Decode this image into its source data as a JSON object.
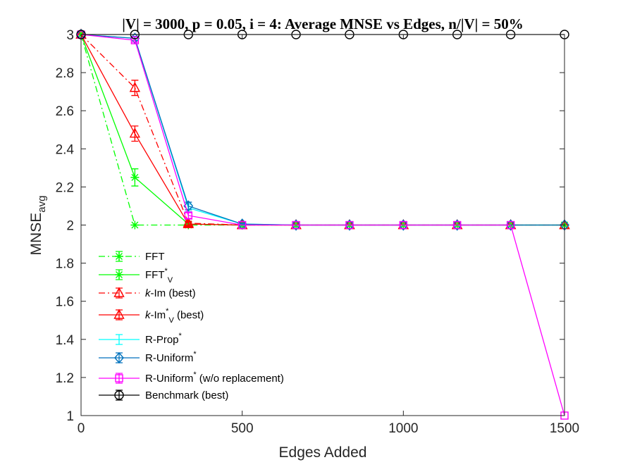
{
  "chart_data": {
    "type": "line",
    "title": "|V| = 3000, p = 0.05, i = 4: Average MNSE vs Edges, n/|V| = 50%",
    "xlabel": "Edges Added",
    "ylabel": {
      "main": "MNSE",
      "sub": "avg"
    },
    "xlim": [
      0,
      1500
    ],
    "ylim": [
      1,
      3
    ],
    "xticks": [
      "0",
      "500",
      "1000",
      "1500"
    ],
    "yticks": [
      "1",
      "1.2",
      "1.4",
      "1.6",
      "1.8",
      "2",
      "2.2",
      "2.4",
      "2.6",
      "2.8",
      "3"
    ],
    "grid": false,
    "legend_position": "bottom-left",
    "x": [
      0,
      167,
      333,
      500,
      667,
      833,
      1000,
      1167,
      1333,
      1500
    ],
    "series": [
      {
        "name": "FFT",
        "label_parts": [
          {
            "t": "FFT",
            "s": "n"
          }
        ],
        "color": "#00ff00",
        "dash": "dashdot",
        "marker": "star",
        "values": [
          3,
          2,
          2,
          2,
          2,
          2,
          2,
          2,
          2,
          2
        ],
        "errors": [
          0,
          0,
          0,
          0,
          0,
          0,
          0,
          0,
          0,
          0
        ]
      },
      {
        "name": "FFT*V",
        "label_parts": [
          {
            "t": "FFT",
            "s": "n"
          },
          {
            "t": "*",
            "s": "sup"
          },
          {
            "t": "V",
            "s": "sub"
          }
        ],
        "color": "#00ff00",
        "dash": "solid",
        "marker": "star",
        "values": [
          3,
          2.25,
          2.005,
          2.0,
          2,
          2,
          2,
          2,
          2,
          2
        ],
        "errors": [
          0,
          0.045,
          0.01,
          0,
          0,
          0,
          0,
          0,
          0,
          0
        ]
      },
      {
        "name": "k-Im (best)",
        "label_parts": [
          {
            "t": "k",
            "s": "it"
          },
          {
            "t": "-Im (best)",
            "s": "n"
          }
        ],
        "color": "#ff0000",
        "dash": "dashdot",
        "marker": "triangle",
        "values": [
          3,
          2.72,
          2.01,
          2.0,
          2,
          2,
          2,
          2,
          2,
          2
        ],
        "errors": [
          0,
          0.04,
          0.01,
          0,
          0,
          0,
          0,
          0,
          0,
          0
        ]
      },
      {
        "name": "k-Im*V (best)",
        "label_parts": [
          {
            "t": "k",
            "s": "it"
          },
          {
            "t": "-Im",
            "s": "n"
          },
          {
            "t": "*",
            "s": "sup"
          },
          {
            "t": "V",
            "s": "sub"
          },
          {
            "t": " (best)",
            "s": "n"
          }
        ],
        "color": "#ff0000",
        "dash": "solid",
        "marker": "triangle",
        "values": [
          3,
          2.48,
          2.005,
          2.0,
          2,
          2,
          2,
          2,
          2,
          2
        ],
        "errors": [
          0,
          0.04,
          0.01,
          0,
          0,
          0,
          0,
          0,
          0,
          0
        ]
      },
      {
        "name": "R-Prop*",
        "label_parts": [
          {
            "t": "R-Prop",
            "s": "n"
          },
          {
            "t": "*",
            "s": "sup"
          }
        ],
        "color": "#00ffff",
        "dash": "solid",
        "marker": "none",
        "values": [
          3,
          2.98,
          2.09,
          2.005,
          2,
          2,
          2,
          2,
          2,
          2
        ],
        "errors": [
          0,
          0.01,
          0.02,
          0.005,
          0,
          0,
          0,
          0,
          0,
          0
        ]
      },
      {
        "name": "R-Uniform*",
        "label_parts": [
          {
            "t": "R-Uniform",
            "s": "n"
          },
          {
            "t": "*",
            "s": "sup"
          }
        ],
        "color": "#0072bd",
        "dash": "solid",
        "marker": "diamond",
        "values": [
          3,
          2.98,
          2.1,
          2.005,
          2,
          2,
          2,
          2,
          2,
          2
        ],
        "errors": [
          0,
          0.01,
          0.02,
          0.005,
          0,
          0,
          0,
          0,
          0,
          0
        ]
      },
      {
        "name": "R-Uniform* (w/o replacement)",
        "label_parts": [
          {
            "t": "R-Uniform",
            "s": "n"
          },
          {
            "t": "*",
            "s": "sup"
          },
          {
            "t": " (w/o replacement)",
            "s": "n"
          }
        ],
        "color": "#ff00ff",
        "dash": "solid",
        "marker": "square",
        "values": [
          3,
          2.97,
          2.05,
          2.0,
          2,
          2,
          2,
          2,
          2,
          1
        ],
        "errors": [
          0,
          0.01,
          0.015,
          0,
          0,
          0,
          0,
          0,
          0,
          0
        ]
      },
      {
        "name": "Benchmark (best)",
        "label_parts": [
          {
            "t": "Benchmark (best)",
            "s": "n"
          }
        ],
        "color": "#000000",
        "dash": "solid",
        "marker": "circle",
        "values": [
          3,
          3,
          3,
          3,
          3,
          3,
          3,
          3,
          3,
          3
        ],
        "errors": [
          0,
          0,
          0,
          0,
          0,
          0,
          0,
          0,
          0,
          0
        ]
      }
    ]
  }
}
